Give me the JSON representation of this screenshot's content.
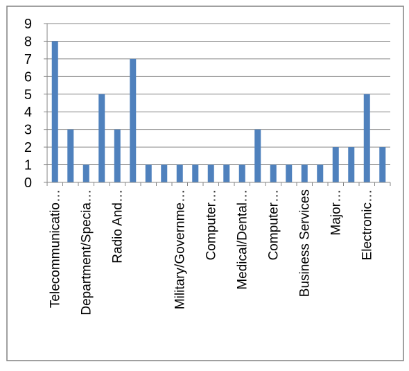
{
  "chart_data": {
    "type": "bar",
    "title": "",
    "xlabel": "",
    "ylabel": "",
    "ylim": [
      0,
      9
    ],
    "yticks": [
      0,
      1,
      2,
      3,
      4,
      5,
      6,
      7,
      8,
      9
    ],
    "grid": true,
    "legend": "none",
    "bar_color": "#4f81bd",
    "categories": [
      "Telecommunicatio…",
      "",
      "Department/Specia…",
      "",
      "Radio And…",
      "",
      "",
      "",
      "Military/Governme…",
      "",
      "Computer…",
      "",
      "Medical/Dental…",
      "",
      "Computer…",
      "",
      "Business Services",
      "",
      "Major…",
      "",
      "Electronic…",
      ""
    ],
    "values": [
      8,
      3,
      1,
      5,
      3,
      7,
      1,
      1,
      1,
      1,
      1,
      1,
      1,
      3,
      1,
      1,
      1,
      1,
      2,
      2,
      5,
      2
    ]
  }
}
